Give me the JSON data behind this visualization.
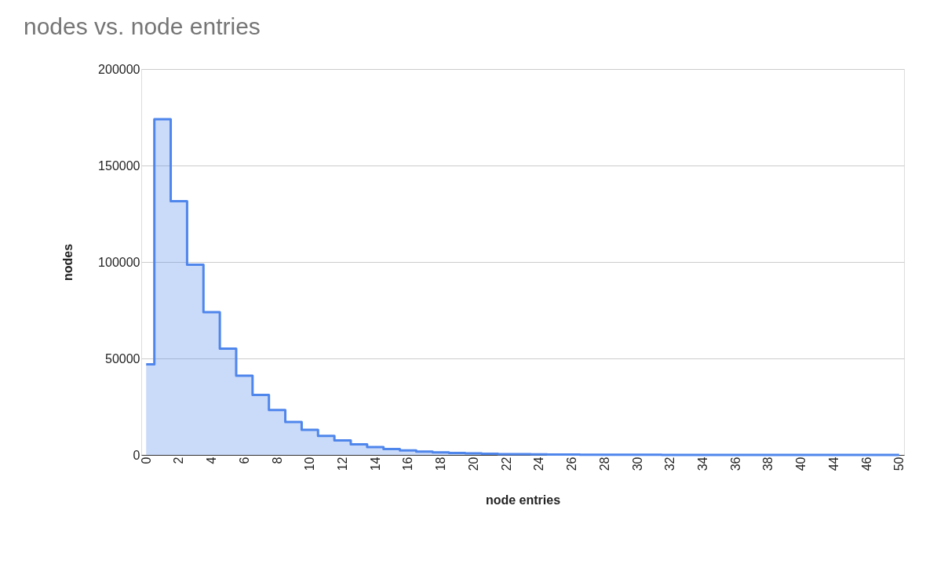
{
  "chart_data": {
    "type": "step",
    "title": "nodes vs. node entries",
    "xlabel": "node entries",
    "ylabel": "nodes",
    "categories": [
      "0",
      null,
      "2",
      null,
      "4",
      null,
      "6",
      null,
      "8",
      null,
      "10",
      null,
      "12",
      null,
      "14",
      null,
      "16",
      null,
      "18",
      null,
      "20",
      null,
      "22",
      null,
      "24",
      null,
      "26",
      null,
      "28",
      null,
      "30",
      null,
      "32",
      null,
      "34",
      null,
      "36",
      null,
      "38",
      null,
      "40",
      null,
      "44",
      null,
      "46",
      null,
      "50"
    ],
    "series": [
      {
        "color": "#4f86ec",
        "values": [
          47000,
          174000,
          131500,
          98600,
          74000,
          55100,
          41100,
          31100,
          23300,
          17100,
          13000,
          9900,
          7500,
          5500,
          4100,
          3000,
          2300,
          1700,
          1300,
          1000,
          800,
          600,
          400,
          400,
          300,
          200,
          200,
          100,
          100,
          100,
          100,
          100,
          0,
          0,
          0,
          0,
          0,
          0,
          0,
          0,
          0,
          0,
          0,
          0,
          0,
          0,
          0
        ]
      }
    ],
    "ylim": [
      0,
      200000
    ],
    "yticks": [
      0,
      50000,
      100000,
      150000,
      200000
    ],
    "grid": "y"
  }
}
